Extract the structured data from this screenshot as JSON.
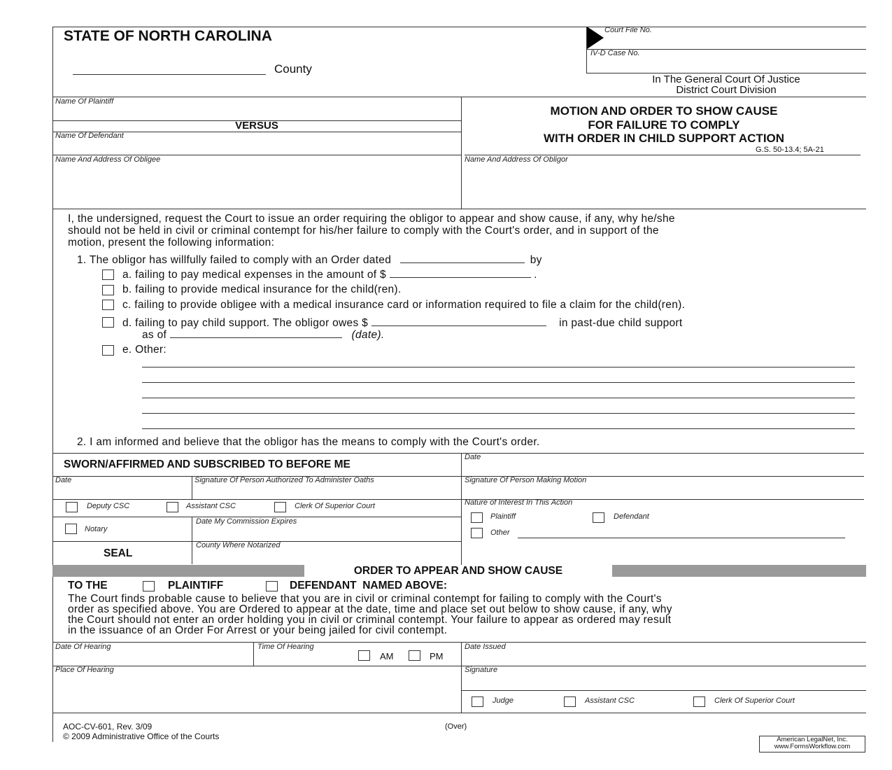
{
  "header": {
    "state": "STATE OF NORTH CAROLINA",
    "county": "County",
    "court_file_label": "Court File No.",
    "ivd_label": "IV-D Case No.",
    "court_line1": "In The General Court Of Justice",
    "court_line2": "District Court Division"
  },
  "parties": {
    "plaintiff": "Name Of Plaintiff",
    "versus": "VERSUS",
    "defendant": "Name Of Defendant",
    "obligee": "Name And Address Of Obligee",
    "obligor": "Name And Address Of Obligor"
  },
  "title": {
    "line1": "MOTION AND ORDER TO SHOW CAUSE",
    "line2": "FOR FAILURE TO COMPLY",
    "line3": "WITH ORDER IN CHILD SUPPORT ACTION",
    "statute": "G.S. 50-13.4; 5A-21"
  },
  "motion": {
    "intro1": "I, the undersigned, request the Court to issue an order requiring the obligor to appear and show cause, if any, why he/she",
    "intro2": "should not be held in civil or criminal contempt for his/her failure to comply with the Court's order, and in support of the",
    "intro3": "motion, present the following information:",
    "item1": "1.   The obligor has willfully failed to comply with an Order dated",
    "item1_by": "by",
    "a": "a.  failing to pay medical expenses in the amount of $",
    "a_end": ".",
    "b": "b.  failing to provide medical insurance for the child(ren).",
    "c": "c.  failing to provide obligee with a medical insurance card or information required to file a claim for the child(ren).",
    "d": "d.  failing to pay child support. The obligor owes $",
    "d_end": "in past-due child support",
    "d_asof": "as of",
    "d_date": "(date).",
    "e": "e.  Other:",
    "item2": "2.   I am informed and believe that the obligor has the means to comply with the Court's order."
  },
  "sworn": {
    "title": "SWORN/AFFIRMED AND SUBSCRIBED TO BEFORE ME",
    "date": "Date",
    "sig_admin": "Signature Of Person Authorized To Administer Oaths",
    "deputy": "Deputy CSC",
    "assistant": "Assistant CSC",
    "clerk": "Clerk Of Superior Court",
    "notary": "Notary",
    "commission": "Date My Commission Expires",
    "county_notarized": "County Where Notarized",
    "seal": "SEAL",
    "date_right": "Date",
    "sig_motion": "Signature Of Person Making Motion",
    "interest": "Nature of Interest In This Action",
    "plaintiff": "Plaintiff",
    "defendant": "Defendant",
    "other": "Other"
  },
  "order": {
    "title": "ORDER TO APPEAR AND SHOW CAUSE",
    "to_the": "TO THE",
    "plaintiff": "PLAINTIFF",
    "defendant": "DEFENDANT  NAMED ABOVE:",
    "p1": "The Court finds probable cause to believe that you are in civil or criminal contempt for failing to comply with the Court's",
    "p2": "order as specified above. You are Ordered to appear at the date, time and place set out below to show cause, if any, why",
    "p3": "the Court should not enter an order holding you in civil or criminal contempt. Your failure to appear as ordered may result",
    "p4": "in the issuance of an Order For Arrest or your being jailed for civil contempt.",
    "date_hearing": "Date Of Hearing",
    "time_hearing": "Time Of Hearing",
    "am": "AM",
    "pm": "PM",
    "date_issued": "Date Issued",
    "place": "Place Of Hearing",
    "signature": "Signature",
    "judge": "Judge",
    "assistant": "Assistant CSC",
    "clerk": "Clerk Of Superior Court"
  },
  "footer": {
    "form": "AOC-CV-601, Rev. 3/09",
    "copyright": "© 2009 Administrative Office of the Courts",
    "over": "(Over)",
    "vendor1": "American LegalNet, Inc.",
    "vendor2": "www.FormsWorkflow.com"
  }
}
